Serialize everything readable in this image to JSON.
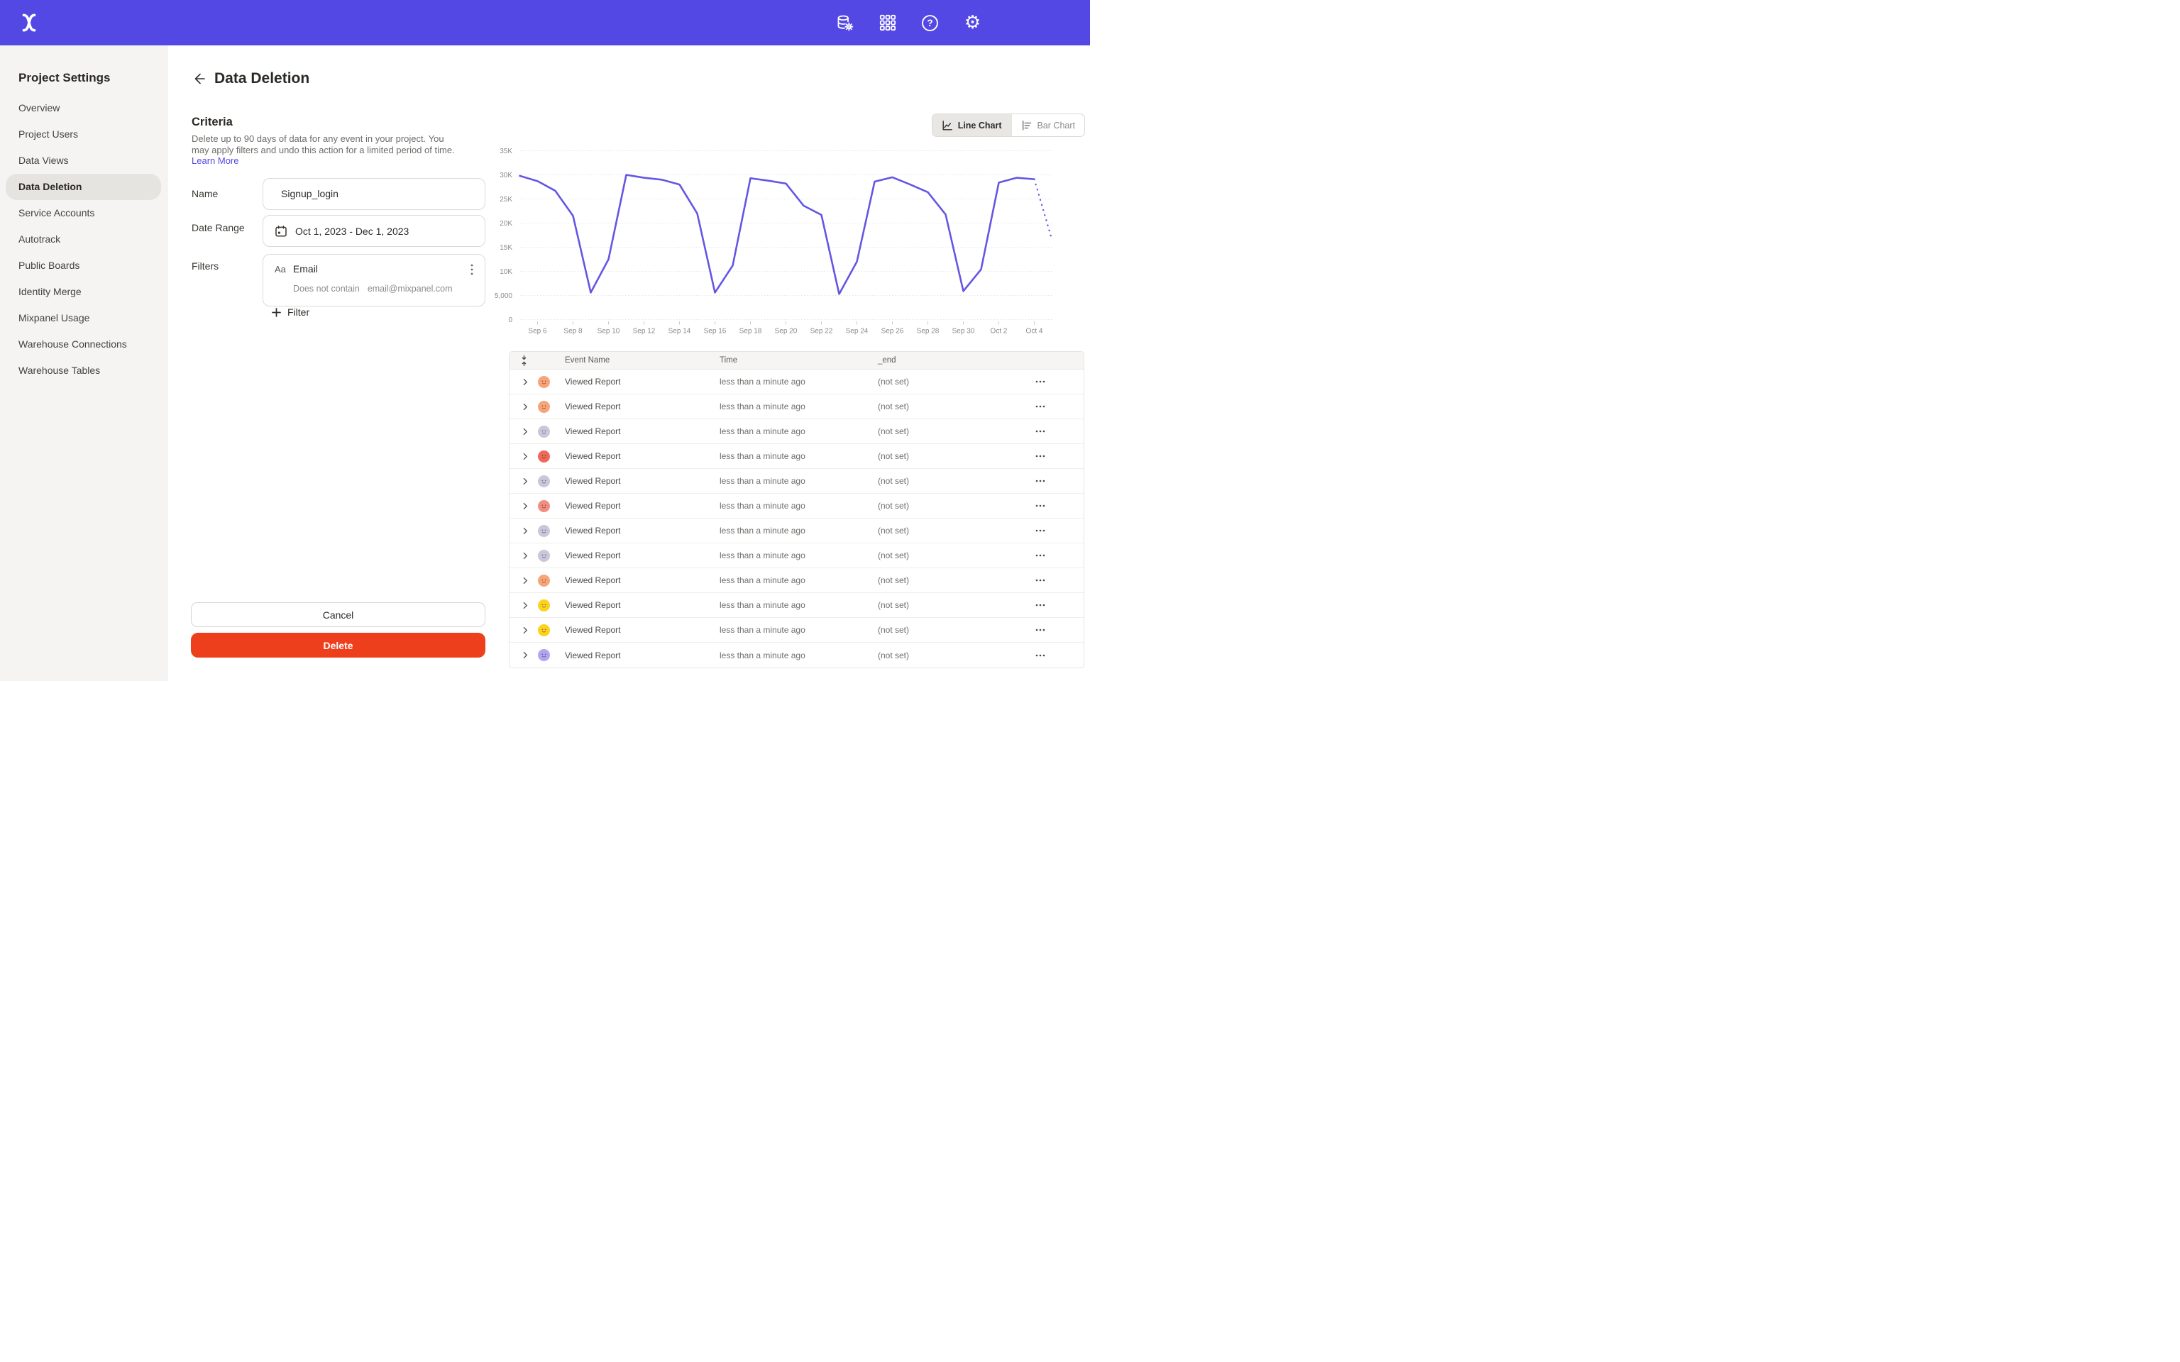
{
  "colors": {
    "topbar_bg": "#5448e5",
    "accent": "#5448e5",
    "delete_red": "#ee3f1c",
    "chart_line": "#6456e4",
    "sidebar_bg": "#f5f4f2",
    "active_item_bg": "#e6e4e1"
  },
  "topbar": {
    "icons": [
      "data-governance-icon",
      "apps-grid-icon",
      "help-icon",
      "settings-icon"
    ]
  },
  "sidebar": {
    "title": "Project Settings",
    "items": [
      {
        "label": "Overview",
        "active": false
      },
      {
        "label": "Project Users",
        "active": false
      },
      {
        "label": "Data Views",
        "active": false
      },
      {
        "label": "Data Deletion",
        "active": true
      },
      {
        "label": "Service Accounts",
        "active": false
      },
      {
        "label": "Autotrack",
        "active": false
      },
      {
        "label": "Public Boards",
        "active": false
      },
      {
        "label": "Identity Merge",
        "active": false
      },
      {
        "label": "Mixpanel Usage",
        "active": false
      },
      {
        "label": "Warehouse Connections",
        "active": false
      },
      {
        "label": "Warehouse Tables",
        "active": false
      }
    ]
  },
  "page": {
    "title": "Data Deletion"
  },
  "criteria": {
    "heading": "Criteria",
    "description": "Delete up to 90 days of data for any event in your project. You may apply filters and undo this action for a limited period of time.",
    "learn_more": "Learn More"
  },
  "form": {
    "name_label": "Name",
    "name_value": "Signup_login",
    "date_label": "Date Range",
    "date_value": "Oct 1, 2023 - Dec 1, 2023",
    "filters_label": "Filters",
    "filter": {
      "type_icon": "Aa",
      "property": "Email",
      "operator": "Does not contain",
      "value": "email@mixpanel.com"
    },
    "add_filter_label": "Filter"
  },
  "actions": {
    "cancel": "Cancel",
    "delete": "Delete"
  },
  "chart_toggle": {
    "line": "Line Chart",
    "bar": "Bar Chart",
    "active": "line"
  },
  "chart_data": {
    "type": "line",
    "title": "",
    "legend": "none",
    "grid": "on",
    "line_color": "#6456e4",
    "x": [
      "Sep 5",
      "Sep 6",
      "Sep 7",
      "Sep 8",
      "Sep 9",
      "Sep 10",
      "Sep 11",
      "Sep 12",
      "Sep 13",
      "Sep 14",
      "Sep 15",
      "Sep 16",
      "Sep 17",
      "Sep 18",
      "Sep 19",
      "Sep 20",
      "Sep 21",
      "Sep 22",
      "Sep 23",
      "Sep 24",
      "Sep 25",
      "Sep 26",
      "Sep 27",
      "Sep 28",
      "Sep 29",
      "Sep 30",
      "Oct 1",
      "Oct 2",
      "Oct 3",
      "Oct 4",
      "Oct 5"
    ],
    "values": [
      29800,
      28700,
      26700,
      21500,
      5600,
      12500,
      30000,
      29400,
      29000,
      28000,
      22000,
      5600,
      11200,
      29300,
      28800,
      28200,
      23600,
      21700,
      5300,
      12000,
      28600,
      29500,
      28000,
      26400,
      21800,
      5900,
      10400,
      28400,
      29400,
      29100,
      16500
    ],
    "projected_from_index": 29,
    "y_ticks": [
      "0",
      "5,000",
      "10K",
      "15K",
      "20K",
      "25K",
      "30K",
      "35K"
    ],
    "y_tick_values": [
      0,
      5000,
      10000,
      15000,
      20000,
      25000,
      30000,
      35000
    ],
    "ylim": [
      0,
      35000
    ],
    "x_tick_labels": [
      "Sep 6",
      "Sep 8",
      "Sep 10",
      "Sep 12",
      "Sep 14",
      "Sep 16",
      "Sep 18",
      "Sep 20",
      "Sep 22",
      "Sep 24",
      "Sep 26",
      "Sep 28",
      "Sep 30",
      "Oct 2",
      "Oct 4"
    ]
  },
  "table": {
    "headers": [
      "Event Name",
      "Time",
      "_end"
    ],
    "rows": [
      {
        "event": "Viewed Report",
        "time": "less than a minute ago",
        "end": "(not set)",
        "avatar_color": "#f7a478"
      },
      {
        "event": "Viewed Report",
        "time": "less than a minute ago",
        "end": "(not set)",
        "avatar_color": "#f7a478"
      },
      {
        "event": "Viewed Report",
        "time": "less than a minute ago",
        "end": "(not set)",
        "avatar_color": "#cbc7db"
      },
      {
        "event": "Viewed Report",
        "time": "less than a minute ago",
        "end": "(not set)",
        "avatar_color": "#ef685a"
      },
      {
        "event": "Viewed Report",
        "time": "less than a minute ago",
        "end": "(not set)",
        "avatar_color": "#cbc7db"
      },
      {
        "event": "Viewed Report",
        "time": "less than a minute ago",
        "end": "(not set)",
        "avatar_color": "#f28d82"
      },
      {
        "event": "Viewed Report",
        "time": "less than a minute ago",
        "end": "(not set)",
        "avatar_color": "#cbc7db"
      },
      {
        "event": "Viewed Report",
        "time": "less than a minute ago",
        "end": "(not set)",
        "avatar_color": "#cbc7db"
      },
      {
        "event": "Viewed Report",
        "time": "less than a minute ago",
        "end": "(not set)",
        "avatar_color": "#f7a478"
      },
      {
        "event": "Viewed Report",
        "time": "less than a minute ago",
        "end": "(not set)",
        "avatar_color": "#fdd21f"
      },
      {
        "event": "Viewed Report",
        "time": "less than a minute ago",
        "end": "(not set)",
        "avatar_color": "#fdd21f"
      },
      {
        "event": "Viewed Report",
        "time": "less than a minute ago",
        "end": "(not set)",
        "avatar_color": "#b4a3f3"
      }
    ]
  }
}
